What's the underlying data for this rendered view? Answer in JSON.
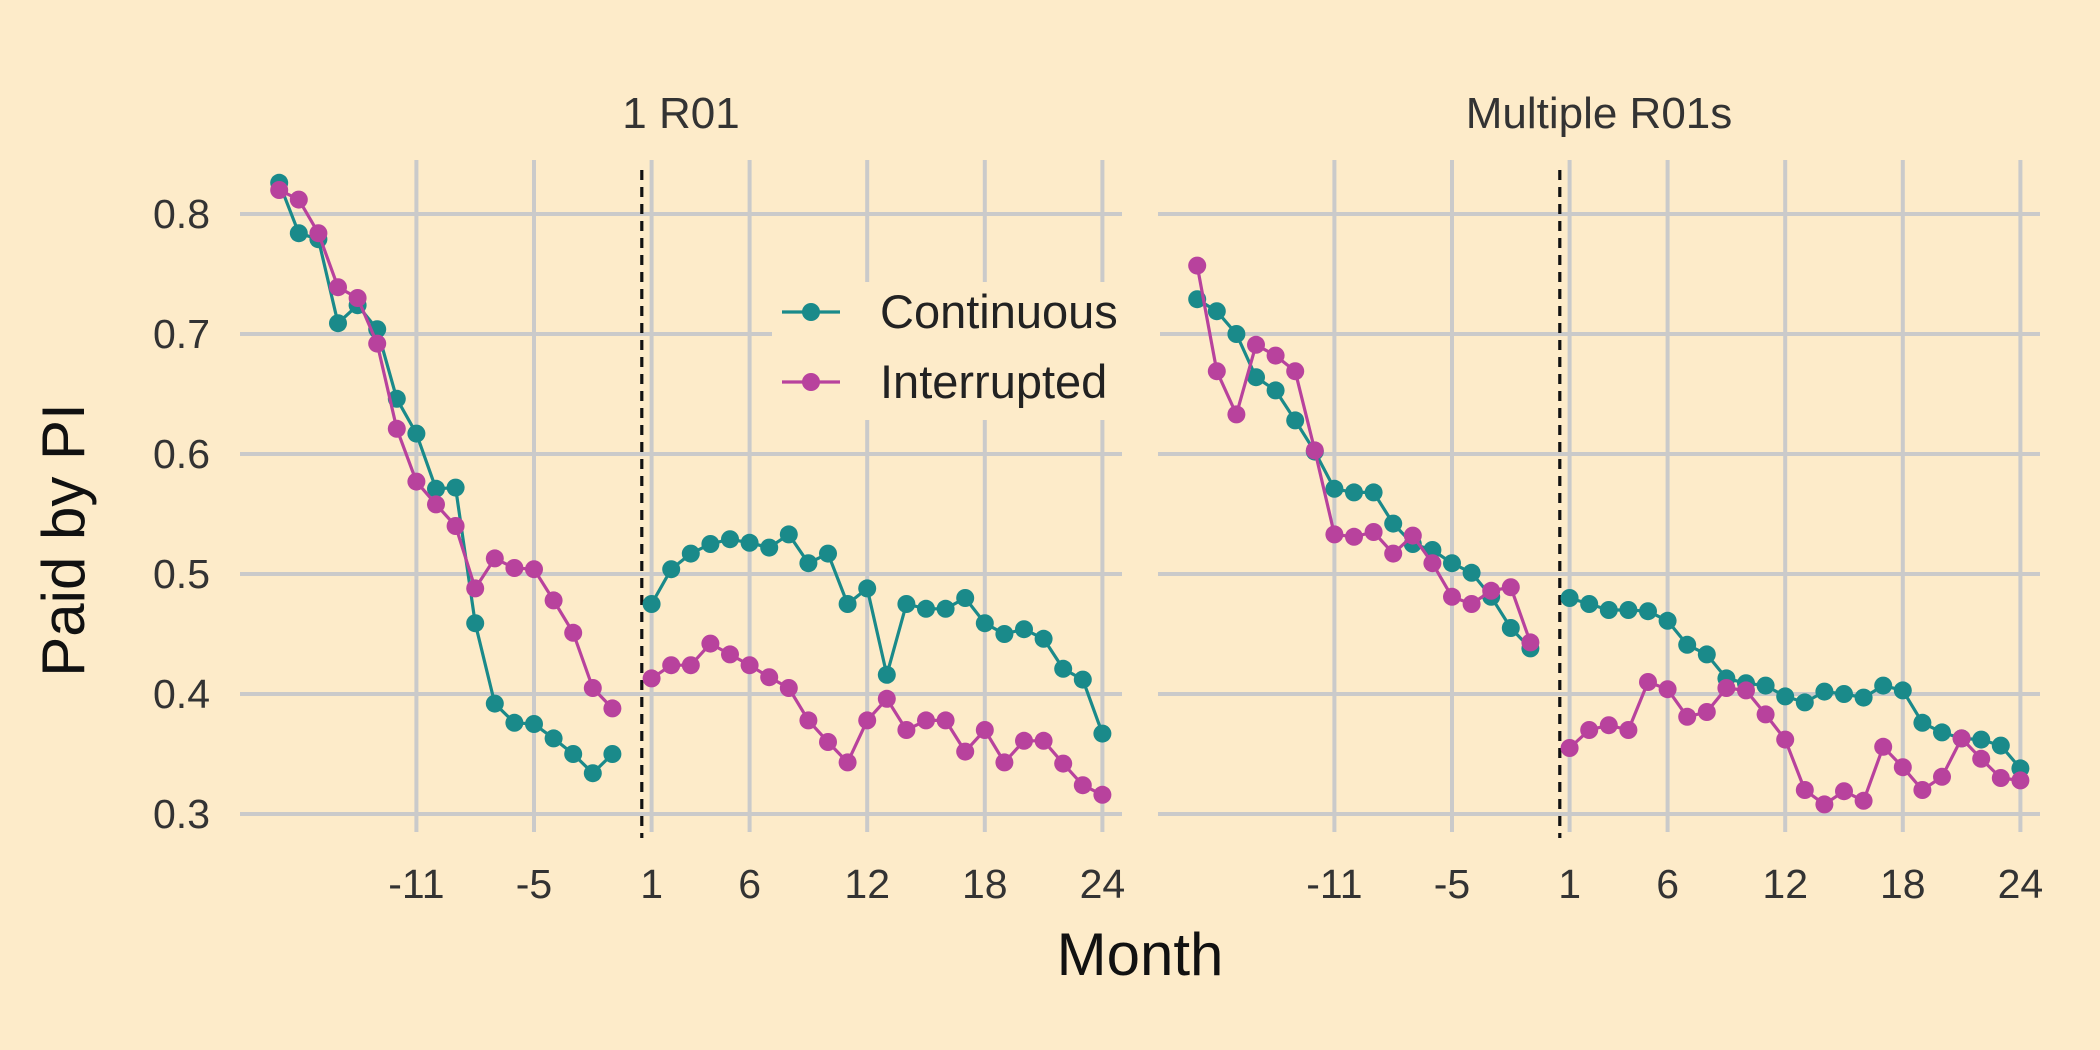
{
  "chart_data": {
    "type": "line",
    "xlabel": "Month",
    "ylabel": "Paid by PI",
    "x_ticks": [
      -11,
      -5,
      1,
      6,
      12,
      18,
      24
    ],
    "y_ticks": [
      0.3,
      0.4,
      0.5,
      0.6,
      0.7,
      0.8
    ],
    "ylim": [
      0.285,
      0.845
    ],
    "xlim": [
      -20,
      25
    ],
    "reference_line_x": 0.5,
    "legend": {
      "placement": "upper-right of left panel",
      "entries": [
        "Continuous",
        "Interrupted"
      ]
    },
    "colors": {
      "Continuous": "#1a8a8a",
      "Interrupted": "#b8429d"
    },
    "x": [
      -18,
      -17,
      -16,
      -15,
      -14,
      -13,
      -12,
      -11,
      -10,
      -9,
      -8,
      -7,
      -6,
      -5,
      -4,
      -3,
      -2,
      -1,
      0,
      1,
      2,
      3,
      4,
      5,
      6,
      7,
      8,
      9,
      10,
      11,
      12,
      13,
      14,
      15,
      16,
      17,
      18,
      19,
      20,
      21,
      22,
      23,
      24
    ],
    "panels": [
      {
        "title": "1 R01",
        "series": [
          {
            "name": "Continuous",
            "values": [
              0.826,
              0.784,
              0.779,
              0.709,
              0.724,
              0.704,
              0.646,
              0.617,
              0.571,
              0.572,
              0.459,
              0.392,
              0.376,
              0.375,
              0.363,
              0.35,
              0.334,
              0.35,
              null,
              0.475,
              0.504,
              0.517,
              0.525,
              0.529,
              0.526,
              0.522,
              0.533,
              0.509,
              0.517,
              0.475,
              0.488,
              0.416,
              0.475,
              0.471,
              0.471,
              0.48,
              0.459,
              0.45,
              0.454,
              0.446,
              0.421,
              0.412,
              0.367
            ]
          },
          {
            "name": "Interrupted",
            "values": [
              0.82,
              0.812,
              0.784,
              0.739,
              0.73,
              0.692,
              0.621,
              0.577,
              0.558,
              0.54,
              0.488,
              0.513,
              0.505,
              0.504,
              0.478,
              0.451,
              0.405,
              0.388,
              null,
              0.413,
              0.424,
              0.424,
              0.442,
              0.433,
              0.424,
              0.414,
              0.405,
              0.378,
              0.36,
              0.343,
              0.378,
              0.396,
              0.37,
              0.378,
              0.378,
              0.352,
              0.37,
              0.343,
              0.361,
              0.361,
              0.342,
              0.324,
              0.316
            ]
          }
        ]
      },
      {
        "title": "Multiple R01s",
        "series": [
          {
            "name": "Continuous",
            "values": [
              0.729,
              0.719,
              0.7,
              0.664,
              0.653,
              0.628,
              0.602,
              0.571,
              0.568,
              0.568,
              0.542,
              0.525,
              0.52,
              0.509,
              0.501,
              0.481,
              0.455,
              0.438,
              null,
              0.48,
              0.475,
              0.47,
              0.47,
              0.469,
              0.461,
              0.441,
              0.433,
              0.413,
              0.409,
              0.407,
              0.398,
              0.393,
              0.402,
              0.4,
              0.397,
              0.407,
              0.403,
              0.376,
              0.368,
              0.363,
              0.362,
              0.357,
              0.338
            ]
          },
          {
            "name": "Interrupted",
            "values": [
              0.757,
              0.669,
              0.633,
              0.691,
              0.682,
              0.669,
              0.603,
              0.533,
              0.531,
              0.535,
              0.517,
              0.532,
              0.509,
              0.481,
              0.475,
              0.486,
              0.489,
              0.443,
              null,
              0.355,
              0.37,
              0.374,
              0.37,
              0.41,
              0.404,
              0.381,
              0.385,
              0.405,
              0.403,
              0.383,
              0.362,
              0.32,
              0.308,
              0.319,
              0.311,
              0.356,
              0.339,
              0.32,
              0.331,
              0.363,
              0.346,
              0.33,
              0.328
            ]
          }
        ]
      }
    ]
  }
}
